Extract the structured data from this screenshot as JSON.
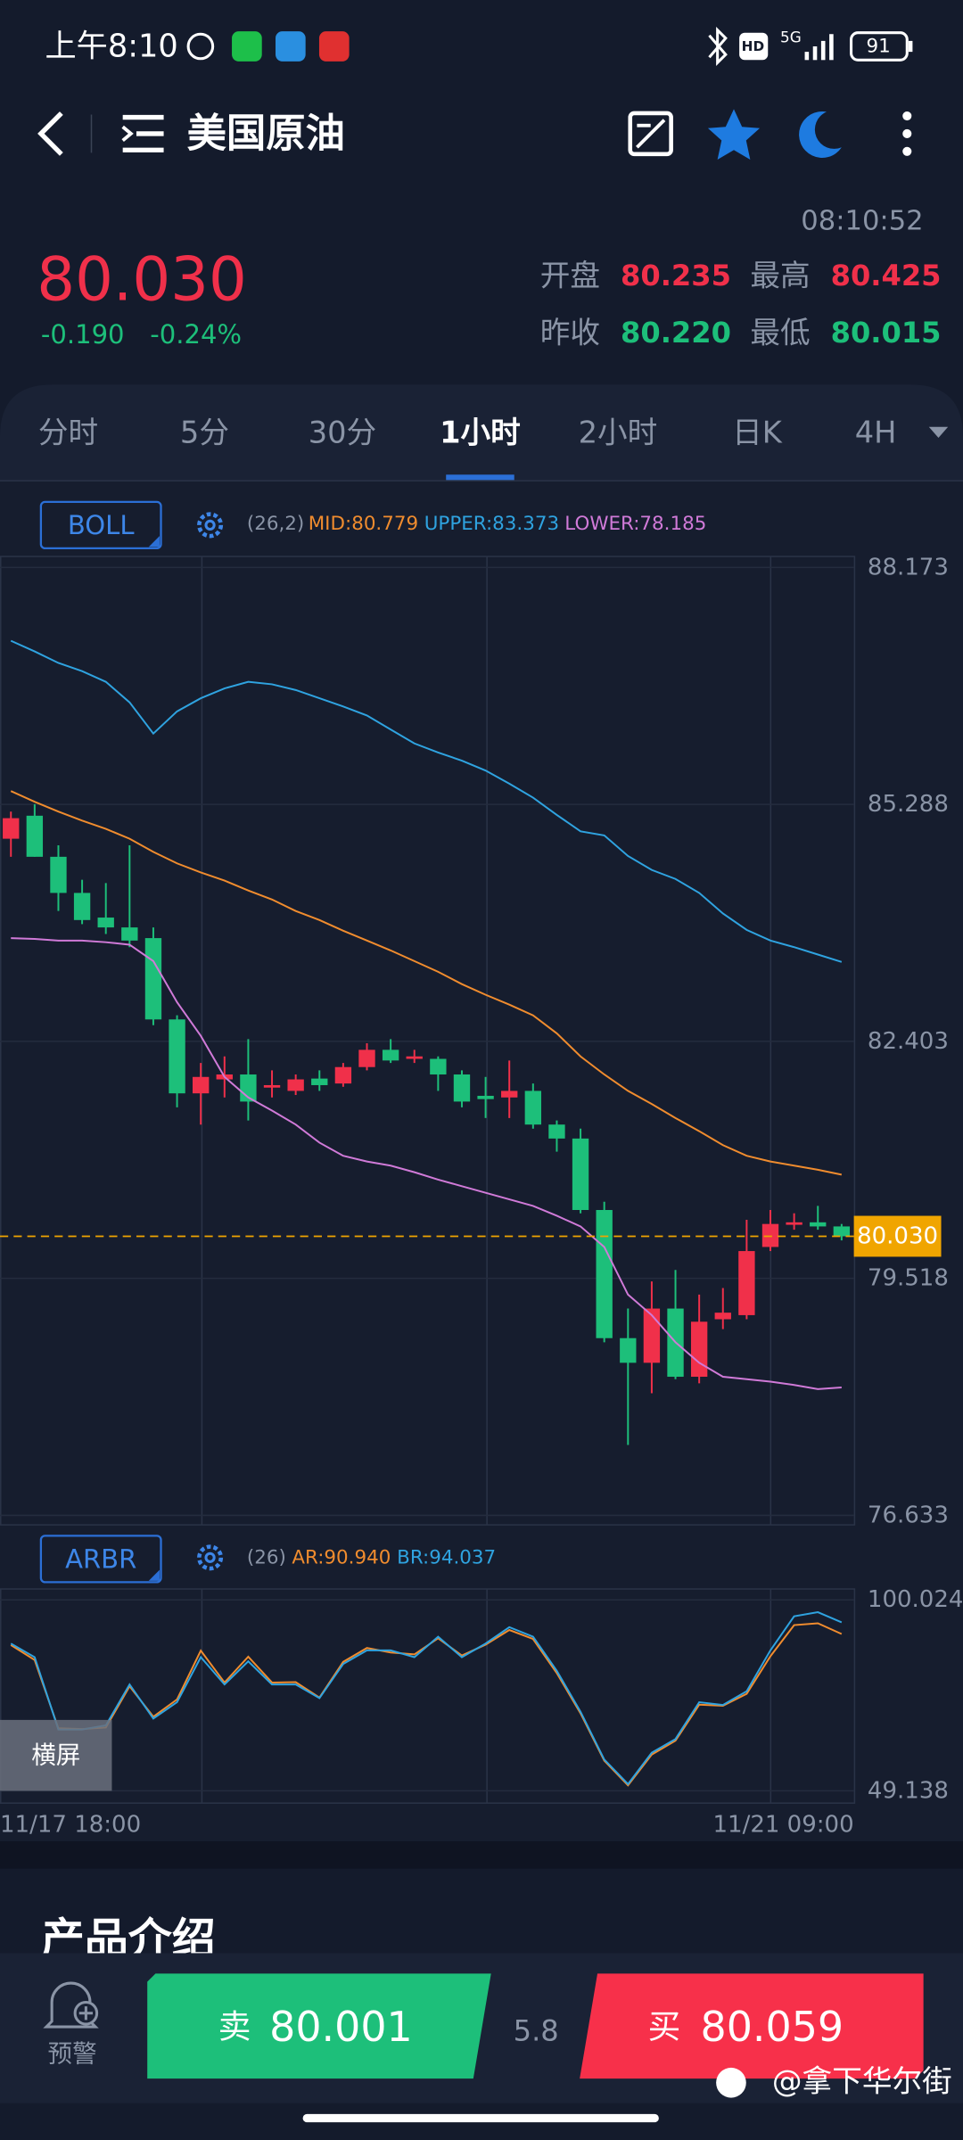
{
  "status_bar": {
    "time": "上午8:10",
    "hd": "HD",
    "network": "5G",
    "battery": "91"
  },
  "header": {
    "title": "美国原油"
  },
  "quote": {
    "time": "08:10:52",
    "price": "80.030",
    "change": "-0.190",
    "change_pct": "-0.24%",
    "open_label": "开盘",
    "open": "80.235",
    "high_label": "最高",
    "high": "80.425",
    "prev_close_label": "昨收",
    "prev_close": "80.220",
    "low_label": "最低",
    "low": "80.015"
  },
  "tabs": [
    "分时",
    "5分",
    "30分",
    "1小时",
    "2小时",
    "日K",
    "4H"
  ],
  "active_tab": 3,
  "chart_data": [
    {
      "type": "candlestick",
      "indicator": "BOLL",
      "params": "(26,2)",
      "up_color": "#f0304a",
      "down_color": "#1dbf7a",
      "ylim": [
        76.633,
        88.173
      ],
      "yticks": [
        88.173,
        85.288,
        82.403,
        79.518,
        76.633
      ],
      "last_price": {
        "value": 80.03,
        "label": "80.030"
      },
      "open": [
        84.87,
        85.15,
        84.65,
        84.21,
        83.91,
        83.79,
        83.66,
        82.67,
        81.77,
        81.94,
        82.0,
        81.84,
        81.8,
        81.95,
        81.89,
        82.09,
        82.3,
        82.19,
        82.19,
        82.0,
        81.74,
        81.72,
        81.8,
        81.39,
        81.22,
        80.35,
        78.79,
        78.49,
        79.15,
        78.32,
        79.02,
        79.07,
        79.9,
        80.17,
        80.2,
        80.15
      ],
      "high": [
        85.2,
        85.29,
        84.79,
        84.37,
        84.33,
        84.79,
        83.79,
        82.72,
        82.14,
        82.22,
        82.43,
        82.05,
        82.0,
        82.05,
        82.14,
        82.38,
        82.43,
        82.3,
        82.22,
        82.05,
        81.97,
        82.17,
        81.89,
        81.44,
        81.34,
        80.45,
        79.15,
        79.48,
        79.62,
        79.32,
        79.4,
        80.23,
        80.35,
        80.31,
        80.4,
        80.18
      ],
      "low": [
        84.65,
        84.65,
        83.99,
        83.83,
        83.71,
        83.55,
        82.6,
        81.6,
        81.39,
        81.72,
        81.44,
        81.72,
        81.75,
        81.8,
        81.85,
        82.05,
        82.14,
        82.14,
        81.8,
        81.6,
        81.47,
        81.47,
        81.34,
        81.06,
        80.31,
        78.74,
        77.49,
        78.12,
        78.29,
        78.24,
        78.9,
        79.02,
        79.85,
        80.11,
        80.11,
        79.98
      ],
      "close": [
        85.12,
        84.65,
        84.21,
        83.88,
        83.79,
        83.63,
        82.67,
        81.77,
        81.97,
        82.0,
        81.67,
        81.87,
        81.94,
        81.87,
        82.09,
        82.3,
        82.17,
        82.22,
        82.0,
        81.67,
        81.7,
        81.8,
        81.39,
        81.22,
        80.35,
        78.79,
        78.49,
        79.15,
        78.32,
        78.99,
        79.1,
        79.85,
        80.18,
        80.2,
        80.15,
        80.03
      ],
      "series": [
        {
          "name": "MID:80.779",
          "color": "#f08c2e",
          "values": [
            85.45,
            85.32,
            85.2,
            85.09,
            84.99,
            84.87,
            84.71,
            84.57,
            84.46,
            84.36,
            84.24,
            84.13,
            83.99,
            83.88,
            83.75,
            83.63,
            83.51,
            83.38,
            83.25,
            83.1,
            82.97,
            82.85,
            82.72,
            82.5,
            82.22,
            82.0,
            81.8,
            81.64,
            81.47,
            81.31,
            81.14,
            81.01,
            80.94,
            80.89,
            80.84,
            80.78
          ]
        },
        {
          "name": "UPPER:83.373",
          "color": "#2fa3e0",
          "values": [
            87.28,
            87.15,
            87.01,
            86.91,
            86.78,
            86.53,
            86.15,
            86.42,
            86.58,
            86.7,
            86.78,
            86.75,
            86.68,
            86.58,
            86.48,
            86.37,
            86.2,
            86.03,
            85.92,
            85.82,
            85.7,
            85.54,
            85.37,
            85.16,
            84.96,
            84.91,
            84.66,
            84.49,
            84.38,
            84.21,
            83.96,
            83.76,
            83.63,
            83.55,
            83.46,
            83.37
          ]
        },
        {
          "name": "LOWER:78.185",
          "color": "#d07ad8",
          "values": [
            83.66,
            83.65,
            83.63,
            83.63,
            83.61,
            83.58,
            83.38,
            82.88,
            82.47,
            81.97,
            81.72,
            81.56,
            81.39,
            81.17,
            81.01,
            80.94,
            80.89,
            80.81,
            80.72,
            80.64,
            80.56,
            80.48,
            80.4,
            80.28,
            80.15,
            79.9,
            79.32,
            79.07,
            78.74,
            78.49,
            78.32,
            78.29,
            78.26,
            78.22,
            78.17,
            78.19
          ]
        }
      ]
    },
    {
      "type": "line",
      "indicator": "ARBR",
      "params": "(26)",
      "ylim": [
        49.138,
        100.024
      ],
      "yticks": [
        100.024,
        49.138
      ],
      "x_labels": [
        "11/17 18:00",
        "11/21 09:00"
      ],
      "series": [
        {
          "name": "AR:90.940",
          "color": "#f08c2e",
          "values": [
            88.0,
            84.0,
            65.8,
            65.6,
            66.0,
            77.0,
            68.9,
            73.5,
            86.5,
            78.0,
            84.9,
            78.0,
            78.1,
            74.0,
            83.5,
            87.2,
            86.0,
            85.5,
            89.8,
            85.2,
            88.1,
            92.0,
            89.6,
            80.5,
            69.8,
            57.2,
            50.6,
            58.8,
            62.5,
            72.1,
            71.8,
            75.0,
            85.0,
            93.3,
            93.8,
            90.94
          ]
        },
        {
          "name": "BR:94.037",
          "color": "#2fa3e0",
          "values": [
            88.39,
            84.76,
            65.49,
            65.49,
            66.58,
            77.49,
            68.4,
            72.76,
            84.76,
            77.49,
            83.66,
            77.49,
            77.49,
            73.85,
            82.94,
            86.57,
            86.57,
            84.76,
            90.21,
            84.76,
            88.39,
            92.75,
            90.21,
            81.12,
            70.21,
            57.49,
            50.95,
            59.31,
            62.94,
            72.76,
            72.03,
            75.67,
            86.57,
            95.66,
            96.75,
            94.037
          ]
        }
      ]
    }
  ],
  "rotate_button": "横屏",
  "section_title": "产品介绍",
  "bottom_bar": {
    "alert": "预警",
    "sell_label": "卖",
    "sell_price": "80.001",
    "spread": "5.8",
    "buy_label": "买",
    "buy_price": "80.059"
  },
  "watermark": "@拿下华尔街"
}
